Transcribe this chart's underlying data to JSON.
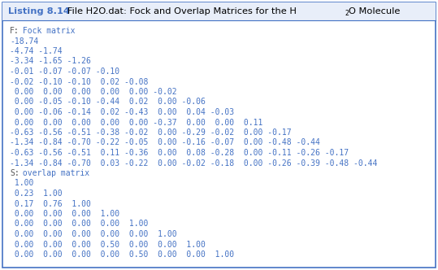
{
  "title_bold": "Listing 8.14",
  "title_rest": "   File H2O.dat: Fock and Overlap Matrices for the H",
  "title_sub": "2",
  "title_end": "O Molecule",
  "border_color": "#4472C4",
  "title_color": "#4472C4",
  "title_bg_color": "#E8EEF9",
  "bg_color": "#FFFFFF",
  "code_color": "#4472C4",
  "label_color": "#555555",
  "code_lines": [
    "F: Fock matrix",
    "-18.74",
    "-4.74 -1.74",
    "-3.34 -1.65 -1.26",
    "-0.01 -0.07 -0.07 -0.10",
    "-0.02 -0.10 -0.10  0.02 -0.08",
    " 0.00  0.00  0.00  0.00  0.00 -0.02",
    " 0.00 -0.05 -0.10 -0.44  0.02  0.00 -0.06",
    " 0.00 -0.06 -0.14  0.02 -0.43  0.00  0.04 -0.03",
    " 0.00  0.00  0.00  0.00  0.00 -0.37  0.00  0.00  0.11",
    "-0.63 -0.56 -0.51 -0.38 -0.02  0.00 -0.29 -0.02  0.00 -0.17",
    "-1.34 -0.84 -0.70 -0.22 -0.05  0.00 -0.16 -0.07  0.00 -0.48 -0.44",
    "-0.63 -0.56 -0.51  0.11 -0.36  0.00  0.08 -0.28  0.00 -0.11 -0.26 -0.17",
    "-1.34 -0.84 -0.70  0.03 -0.22  0.00 -0.02 -0.18  0.00 -0.26 -0.39 -0.48 -0.44",
    "S: overlap matrix",
    " 1.00",
    " 0.23  1.00",
    " 0.17  0.76  1.00",
    " 0.00  0.00  0.00  1.00",
    " 0.00  0.00  0.00  0.00  1.00",
    " 0.00  0.00  0.00  0.00  0.00  1.00",
    " 0.00  0.00  0.00  0.50  0.00  0.00  1.00",
    " 0.00  0.00  0.00  0.00  0.50  0.00  0.00  1.00"
  ],
  "code_font_size": 7.0,
  "title_font_size": 8.2,
  "fig_width": 5.39,
  "fig_height": 3.32,
  "dpi": 100
}
